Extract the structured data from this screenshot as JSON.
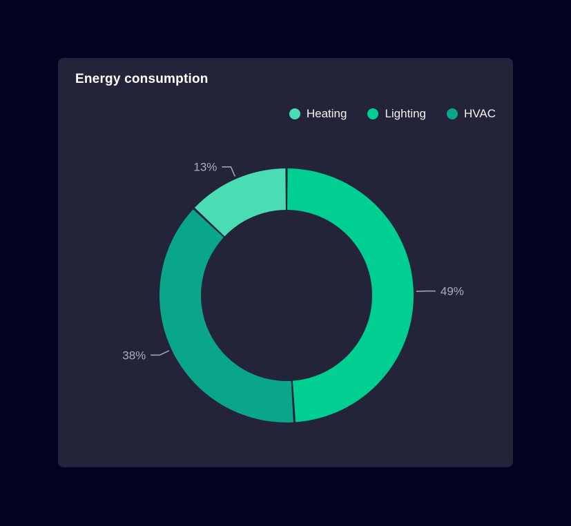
{
  "card": {
    "title": "Energy consumption"
  },
  "colors": {
    "page_bg": "#030220",
    "card_bg": "#232339",
    "title_text": "#ffffff",
    "legend_text": "#f4f4f1",
    "label_text": "#a9aebd",
    "heating": "#4adcb2",
    "lighting": "#00cf92",
    "hvac": "#0aa689"
  },
  "chart_data": {
    "type": "pie",
    "subtype": "donut",
    "title": "Energy consumption",
    "unit": "%",
    "slices": [
      {
        "name": "Heating",
        "value": 13,
        "label": "13%",
        "color": "#4adcb2"
      },
      {
        "name": "Lighting",
        "value": 49,
        "label": "49%",
        "color": "#00cf92"
      },
      {
        "name": "HVAC",
        "value": 38,
        "label": "38%",
        "color": "#0aa689"
      }
    ],
    "legend_position": "top-right",
    "legend_labels": [
      "Heating",
      "Lighting",
      "HVAC"
    ],
    "layout": {
      "start_angle_deg": -46.8,
      "pad_angle_deg": 0.5,
      "center": [
        331,
        344
      ],
      "outer_radius": 184,
      "inner_radius": 124
    }
  }
}
